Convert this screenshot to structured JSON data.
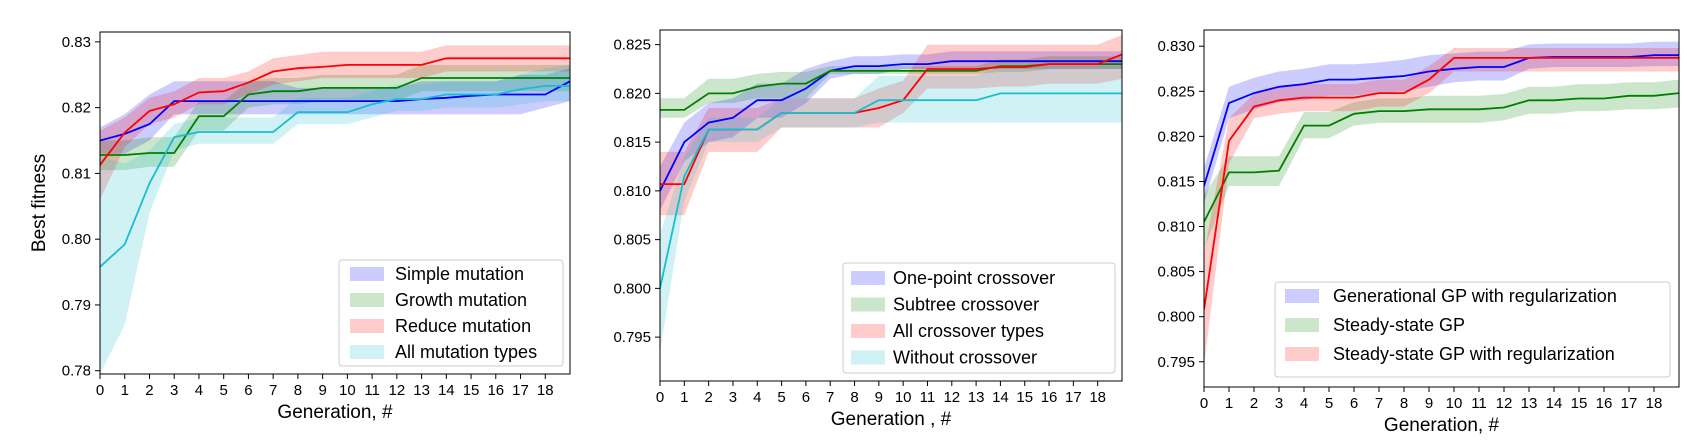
{
  "chart_data": [
    {
      "type": "line",
      "x": [
        0,
        1,
        2,
        3,
        4,
        5,
        6,
        7,
        8,
        9,
        10,
        11,
        12,
        13,
        14,
        15,
        16,
        17,
        18,
        19
      ],
      "xlabel": "Generation, #",
      "ylabel": "Best fitness",
      "xlim": [
        0,
        19
      ],
      "ylim": [
        0.7795,
        0.8315
      ],
      "yticks": [
        0.78,
        0.79,
        0.8,
        0.81,
        0.82,
        0.83
      ],
      "ytick_labels": [
        "0.78",
        "0.79",
        "0.80",
        "0.81",
        "0.82",
        "0.83"
      ],
      "xticks": [
        0,
        1,
        2,
        3,
        4,
        5,
        6,
        7,
        8,
        9,
        10,
        11,
        12,
        13,
        14,
        15,
        16,
        17,
        18
      ],
      "xtick_labels": [
        "0",
        "1",
        "2",
        "3",
        "4",
        "5",
        "6",
        "7",
        "8",
        "9",
        "10",
        "11",
        "12",
        "13",
        "14",
        "15",
        "16",
        "17",
        "18"
      ],
      "legend_position": "bottom-right",
      "grid": false,
      "series": [
        {
          "name": "Simple mutation",
          "color": "#0000ff",
          "values": [
            0.815,
            0.816,
            0.8175,
            0.821,
            0.821,
            0.821,
            0.821,
            0.821,
            0.821,
            0.821,
            0.821,
            0.821,
            0.821,
            0.8213,
            0.8215,
            0.8218,
            0.822,
            0.822,
            0.822,
            0.824
          ],
          "lower": [
            0.813,
            0.813,
            0.815,
            0.819,
            0.819,
            0.819,
            0.819,
            0.819,
            0.819,
            0.819,
            0.819,
            0.819,
            0.819,
            0.819,
            0.819,
            0.819,
            0.819,
            0.819,
            0.82,
            0.821
          ],
          "upper": [
            0.817,
            0.819,
            0.822,
            0.824,
            0.824,
            0.824,
            0.824,
            0.824,
            0.823,
            0.823,
            0.823,
            0.823,
            0.823,
            0.824,
            0.824,
            0.824,
            0.824,
            0.825,
            0.825,
            0.826
          ]
        },
        {
          "name": "Growth mutation",
          "color": "#008000",
          "values": [
            0.8128,
            0.8128,
            0.8131,
            0.8131,
            0.8187,
            0.8187,
            0.822,
            0.8225,
            0.8225,
            0.823,
            0.823,
            0.823,
            0.823,
            0.8245,
            0.8245,
            0.8245,
            0.8245,
            0.8245,
            0.8245,
            0.8245
          ],
          "lower": [
            0.8105,
            0.8105,
            0.811,
            0.811,
            0.8165,
            0.8165,
            0.82,
            0.8205,
            0.8205,
            0.821,
            0.821,
            0.821,
            0.821,
            0.8225,
            0.8225,
            0.8225,
            0.8225,
            0.8225,
            0.8225,
            0.8225
          ],
          "upper": [
            0.815,
            0.815,
            0.8155,
            0.8155,
            0.821,
            0.821,
            0.824,
            0.8245,
            0.8245,
            0.825,
            0.825,
            0.825,
            0.825,
            0.8265,
            0.8265,
            0.8265,
            0.8265,
            0.8265,
            0.8265,
            0.8265
          ]
        },
        {
          "name": "Reduce mutation",
          "color": "#ff0000",
          "values": [
            0.8113,
            0.8162,
            0.8195,
            0.8205,
            0.8223,
            0.8225,
            0.8238,
            0.8255,
            0.826,
            0.8262,
            0.8265,
            0.8265,
            0.8265,
            0.8265,
            0.8275,
            0.8275,
            0.8275,
            0.8275,
            0.8275,
            0.8275
          ],
          "lower": [
            0.806,
            0.814,
            0.8175,
            0.8185,
            0.8205,
            0.8205,
            0.822,
            0.8235,
            0.824,
            0.8245,
            0.8245,
            0.8245,
            0.8245,
            0.8245,
            0.8255,
            0.8255,
            0.8255,
            0.8255,
            0.8255,
            0.8255
          ],
          "upper": [
            0.8165,
            0.8185,
            0.8215,
            0.8225,
            0.8245,
            0.8245,
            0.8255,
            0.8275,
            0.828,
            0.8285,
            0.8285,
            0.8285,
            0.8285,
            0.8285,
            0.8295,
            0.8295,
            0.8295,
            0.8295,
            0.8295,
            0.8295
          ]
        },
        {
          "name": "All mutation types",
          "color": "#17becf",
          "values": [
            0.7958,
            0.7992,
            0.8085,
            0.8155,
            0.8163,
            0.8163,
            0.8163,
            0.8163,
            0.8193,
            0.8193,
            0.8193,
            0.8205,
            0.8213,
            0.8213,
            0.822,
            0.822,
            0.822,
            0.8228,
            0.8233,
            0.8233
          ],
          "lower": [
            0.7795,
            0.787,
            0.804,
            0.8135,
            0.8145,
            0.8145,
            0.8145,
            0.8145,
            0.8175,
            0.8175,
            0.8175,
            0.8185,
            0.8195,
            0.8195,
            0.82,
            0.82,
            0.82,
            0.8205,
            0.821,
            0.821
          ],
          "upper": [
            0.8125,
            0.8115,
            0.8135,
            0.8175,
            0.8185,
            0.8185,
            0.8185,
            0.8185,
            0.8215,
            0.8215,
            0.8215,
            0.8225,
            0.8235,
            0.8235,
            0.824,
            0.824,
            0.824,
            0.825,
            0.826,
            0.8265
          ]
        }
      ]
    },
    {
      "type": "line",
      "x": [
        0,
        1,
        2,
        3,
        4,
        5,
        6,
        7,
        8,
        9,
        10,
        11,
        12,
        13,
        14,
        15,
        16,
        17,
        18,
        19
      ],
      "xlabel": "Generation , #",
      "ylabel": "",
      "xlim": [
        0,
        19
      ],
      "ylim": [
        0.7905,
        0.8265
      ],
      "yticks": [
        0.795,
        0.8,
        0.805,
        0.81,
        0.815,
        0.82,
        0.825
      ],
      "ytick_labels": [
        "0.795",
        "0.800",
        "0.805",
        "0.810",
        "0.815",
        "0.820",
        "0.825"
      ],
      "xticks": [
        0,
        1,
        2,
        3,
        4,
        5,
        6,
        7,
        8,
        9,
        10,
        11,
        12,
        13,
        14,
        15,
        16,
        17,
        18
      ],
      "xtick_labels": [
        "0",
        "1",
        "2",
        "3",
        "4",
        "5",
        "6",
        "7",
        "8",
        "9",
        "10",
        "11",
        "12",
        "13",
        "14",
        "15",
        "16",
        "17",
        "18"
      ],
      "legend_position": "bottom-right",
      "grid": false,
      "series": [
        {
          "name": "One-point crossover",
          "color": "#0000ff",
          "values": [
            0.81,
            0.815,
            0.817,
            0.8175,
            0.8193,
            0.8193,
            0.8205,
            0.8223,
            0.8228,
            0.8228,
            0.823,
            0.823,
            0.8233,
            0.8233,
            0.8233,
            0.8233,
            0.8233,
            0.8233,
            0.8233,
            0.8233
          ],
          "lower": [
            0.808,
            0.813,
            0.815,
            0.8155,
            0.8175,
            0.8175,
            0.819,
            0.8215,
            0.822,
            0.822,
            0.8225,
            0.8225,
            0.8225,
            0.8225,
            0.8225,
            0.8225,
            0.8225,
            0.8225,
            0.8225,
            0.8225
          ],
          "upper": [
            0.8125,
            0.817,
            0.819,
            0.8195,
            0.821,
            0.821,
            0.8225,
            0.8233,
            0.8238,
            0.8238,
            0.824,
            0.824,
            0.8243,
            0.8243,
            0.8243,
            0.8243,
            0.8243,
            0.8243,
            0.8243,
            0.8243
          ]
        },
        {
          "name": "Subtree crossover",
          "color": "#008000",
          "values": [
            0.8183,
            0.8183,
            0.82,
            0.82,
            0.8207,
            0.821,
            0.821,
            0.8223,
            0.8223,
            0.8223,
            0.8223,
            0.8223,
            0.8223,
            0.8223,
            0.8228,
            0.8228,
            0.823,
            0.823,
            0.823,
            0.823
          ],
          "lower": [
            0.8175,
            0.8175,
            0.819,
            0.819,
            0.8195,
            0.8195,
            0.8195,
            0.822,
            0.822,
            0.822,
            0.822,
            0.822,
            0.822,
            0.822,
            0.8222,
            0.8222,
            0.8225,
            0.8225,
            0.8225,
            0.8225
          ],
          "upper": [
            0.8195,
            0.8195,
            0.8215,
            0.8215,
            0.822,
            0.8222,
            0.8222,
            0.8228,
            0.8228,
            0.8228,
            0.8228,
            0.8228,
            0.8228,
            0.8228,
            0.8235,
            0.8235,
            0.8238,
            0.8238,
            0.8238,
            0.8238
          ]
        },
        {
          "name": "All crossover types",
          "color": "#ff0000",
          "values": [
            0.8107,
            0.8107,
            0.8163,
            0.8163,
            0.8163,
            0.818,
            0.818,
            0.818,
            0.818,
            0.8185,
            0.8193,
            0.8225,
            0.8225,
            0.8225,
            0.8227,
            0.8227,
            0.823,
            0.823,
            0.823,
            0.824
          ],
          "lower": [
            0.8075,
            0.8075,
            0.814,
            0.814,
            0.814,
            0.8165,
            0.8165,
            0.8165,
            0.8165,
            0.8165,
            0.818,
            0.8205,
            0.8205,
            0.8205,
            0.8207,
            0.8207,
            0.821,
            0.821,
            0.821,
            0.8215
          ],
          "upper": [
            0.814,
            0.814,
            0.8185,
            0.8185,
            0.8185,
            0.8195,
            0.8195,
            0.8195,
            0.8195,
            0.8205,
            0.8213,
            0.825,
            0.825,
            0.825,
            0.825,
            0.825,
            0.825,
            0.825,
            0.825,
            0.826
          ]
        },
        {
          "name": "Without crossover",
          "color": "#17becf",
          "values": [
            0.8,
            0.8115,
            0.8163,
            0.8163,
            0.8163,
            0.818,
            0.818,
            0.818,
            0.818,
            0.8193,
            0.8193,
            0.8193,
            0.8193,
            0.8193,
            0.82,
            0.82,
            0.82,
            0.82,
            0.82,
            0.82
          ],
          "lower": [
            0.7935,
            0.809,
            0.815,
            0.815,
            0.815,
            0.8165,
            0.8165,
            0.8165,
            0.8165,
            0.817,
            0.817,
            0.817,
            0.817,
            0.817,
            0.817,
            0.817,
            0.817,
            0.817,
            0.817,
            0.817
          ],
          "upper": [
            0.8055,
            0.8135,
            0.8175,
            0.8175,
            0.8175,
            0.8195,
            0.8195,
            0.8195,
            0.8195,
            0.8218,
            0.8218,
            0.8218,
            0.8218,
            0.8218,
            0.8228,
            0.8228,
            0.8228,
            0.8228,
            0.8228,
            0.8228
          ]
        }
      ]
    },
    {
      "type": "line",
      "x": [
        0,
        1,
        2,
        3,
        4,
        5,
        6,
        7,
        8,
        9,
        10,
        11,
        12,
        13,
        14,
        15,
        16,
        17,
        18,
        19
      ],
      "xlabel": "Generation, #",
      "ylabel": "",
      "xlim": [
        0,
        19
      ],
      "ylim": [
        0.7922,
        0.8318
      ],
      "yticks": [
        0.795,
        0.8,
        0.805,
        0.81,
        0.815,
        0.82,
        0.825,
        0.83
      ],
      "ytick_labels": [
        "0.795",
        "0.800",
        "0.805",
        "0.810",
        "0.815",
        "0.820",
        "0.825",
        "0.830"
      ],
      "xticks": [
        0,
        1,
        2,
        3,
        4,
        5,
        6,
        7,
        8,
        9,
        10,
        11,
        12,
        13,
        14,
        15,
        16,
        17,
        18
      ],
      "xtick_labels": [
        "0",
        "1",
        "2",
        "3",
        "4",
        "5",
        "6",
        "7",
        "8",
        "9",
        "10",
        "11",
        "12",
        "13",
        "14",
        "15",
        "16",
        "17",
        "18"
      ],
      "legend_position": "bottom-right",
      "grid": false,
      "series": [
        {
          "name": "Generational GP with regularization",
          "color": "#0000ff",
          "values": [
            0.8145,
            0.8237,
            0.8248,
            0.8255,
            0.8258,
            0.8263,
            0.8263,
            0.8265,
            0.8267,
            0.8272,
            0.8275,
            0.8277,
            0.8277,
            0.8287,
            0.8288,
            0.8288,
            0.8288,
            0.8288,
            0.829,
            0.829
          ],
          "lower": [
            0.8125,
            0.822,
            0.823,
            0.8238,
            0.824,
            0.8245,
            0.8245,
            0.8248,
            0.825,
            0.8255,
            0.826,
            0.8262,
            0.8262,
            0.8275,
            0.8277,
            0.8277,
            0.8277,
            0.8277,
            0.8278,
            0.8278
          ],
          "upper": [
            0.8165,
            0.8255,
            0.8265,
            0.8272,
            0.8275,
            0.828,
            0.828,
            0.8282,
            0.8285,
            0.829,
            0.8292,
            0.8294,
            0.8294,
            0.8302,
            0.8303,
            0.8303,
            0.8303,
            0.8303,
            0.8305,
            0.8305
          ]
        },
        {
          "name": "Steady-state GP",
          "color": "#008000",
          "values": [
            0.8105,
            0.816,
            0.816,
            0.8162,
            0.8212,
            0.8212,
            0.8225,
            0.8228,
            0.8228,
            0.823,
            0.823,
            0.823,
            0.8232,
            0.824,
            0.824,
            0.8242,
            0.8242,
            0.8245,
            0.8245,
            0.8248
          ],
          "lower": [
            0.8075,
            0.8145,
            0.8145,
            0.8145,
            0.8198,
            0.8198,
            0.8212,
            0.8215,
            0.8215,
            0.8215,
            0.8215,
            0.8215,
            0.8218,
            0.8225,
            0.8225,
            0.8228,
            0.8228,
            0.823,
            0.823,
            0.8232
          ],
          "upper": [
            0.8135,
            0.8178,
            0.8178,
            0.8178,
            0.8227,
            0.8227,
            0.8238,
            0.8242,
            0.8242,
            0.8245,
            0.8245,
            0.8245,
            0.8247,
            0.8255,
            0.8255,
            0.8258,
            0.8258,
            0.826,
            0.826,
            0.8263
          ]
        },
        {
          "name": "Steady-state GP with regularization",
          "color": "#ff0000",
          "values": [
            0.8008,
            0.8195,
            0.8233,
            0.824,
            0.8243,
            0.8243,
            0.8243,
            0.8248,
            0.8248,
            0.8263,
            0.8287,
            0.8287,
            0.8287,
            0.8287,
            0.8287,
            0.8287,
            0.8287,
            0.8287,
            0.8287,
            0.8287
          ],
          "lower": [
            0.7945,
            0.817,
            0.822,
            0.8225,
            0.8228,
            0.8228,
            0.8228,
            0.8233,
            0.8233,
            0.8248,
            0.8272,
            0.8272,
            0.8272,
            0.8272,
            0.8272,
            0.8272,
            0.8272,
            0.8272,
            0.8272,
            0.8272
          ],
          "upper": [
            0.807,
            0.822,
            0.8247,
            0.8255,
            0.8258,
            0.8258,
            0.8258,
            0.8263,
            0.8263,
            0.8278,
            0.8298,
            0.8298,
            0.8298,
            0.8298,
            0.8298,
            0.8298,
            0.8298,
            0.8298,
            0.8298,
            0.8298
          ]
        }
      ]
    }
  ]
}
